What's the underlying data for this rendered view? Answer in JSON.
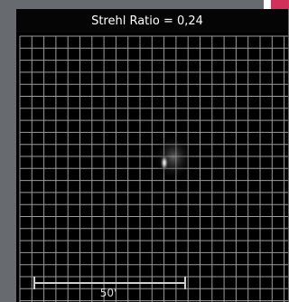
{
  "header": {
    "title": "Strehl Ratio = 0,24"
  },
  "scale_bar": {
    "label": "50'"
  }
}
